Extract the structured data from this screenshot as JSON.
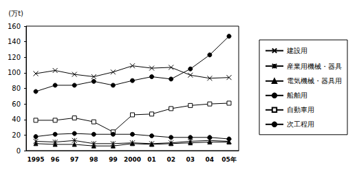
{
  "chart_data": {
    "type": "line",
    "y_label": "(万t)",
    "categories": [
      "1995",
      "96",
      "97",
      "98",
      "99",
      "2000",
      "01",
      "02",
      "03",
      "04",
      "05年"
    ],
    "series": [
      {
        "name": "建設用",
        "color": "#000000",
        "marker": "x",
        "values": [
          99,
          103,
          98,
          95,
          101,
          109,
          106,
          107,
          97,
          93,
          94
        ]
      },
      {
        "name": "産業用機械・器具",
        "color": "#000000",
        "marker": "asterisk",
        "values": [
          12,
          11,
          13,
          9,
          9,
          10,
          9,
          10,
          12,
          13,
          12
        ]
      },
      {
        "name": "電気機械・器具用",
        "color": "#000000",
        "marker": "triangle",
        "values": [
          9,
          8,
          8,
          6,
          6,
          9,
          8,
          9,
          10,
          11,
          11
        ]
      },
      {
        "name": "船舶用",
        "color": "#000000",
        "marker": "circle",
        "values": [
          76,
          84,
          84,
          89,
          84,
          90,
          95,
          92,
          105,
          123,
          147
        ]
      },
      {
        "name": "自動車用",
        "color": "#000000",
        "marker": "square",
        "values": [
          39,
          39,
          42,
          37,
          24,
          46,
          47,
          54,
          58,
          60,
          61
        ]
      },
      {
        "name": "次工程用",
        "color": "#000000",
        "marker": "circle",
        "values": [
          18,
          21,
          22,
          21,
          21,
          21,
          19,
          17,
          17,
          17,
          15
        ]
      }
    ],
    "ylim": [
      0,
      160
    ],
    "yticks": [
      0,
      20,
      40,
      60,
      80,
      100,
      120,
      140,
      160
    ],
    "grid": false,
    "legend": "right"
  }
}
